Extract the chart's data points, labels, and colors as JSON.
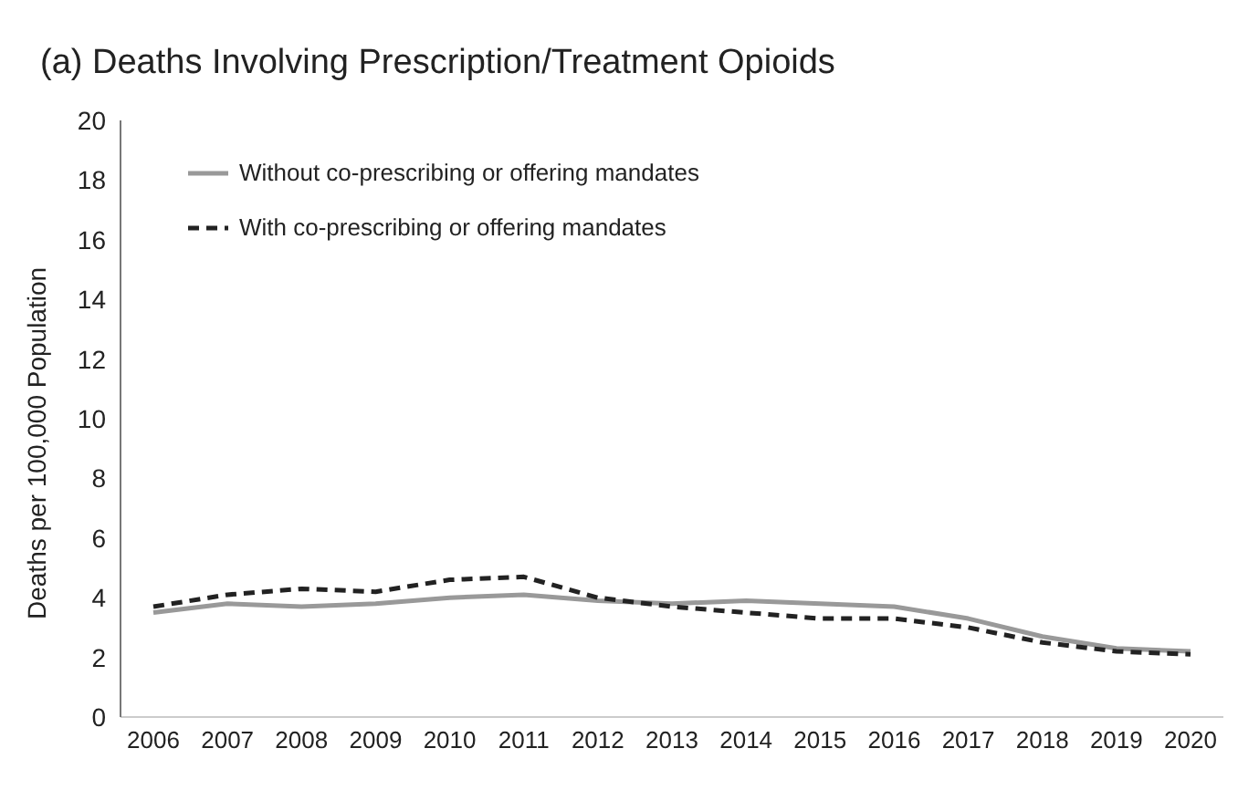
{
  "chart_data": {
    "type": "line",
    "title": "(a) Deaths Involving Prescription/Treatment Opioids",
    "ylabel": "Deaths per 100,000 Population",
    "categories": [
      "2006",
      "2007",
      "2008",
      "2009",
      "2010",
      "2011",
      "2012",
      "2013",
      "2014",
      "2015",
      "2016",
      "2017",
      "2018",
      "2019",
      "2020"
    ],
    "series": [
      {
        "name": "Without co-prescribing or offering mandates",
        "color": "#999999",
        "line_style": "solid",
        "values": [
          3.5,
          3.8,
          3.7,
          3.8,
          4.0,
          4.1,
          3.9,
          3.8,
          3.9,
          3.8,
          3.7,
          3.3,
          2.7,
          2.3,
          2.2
        ]
      },
      {
        "name": "With co-prescribing or offering mandates",
        "color": "#222222",
        "line_style": "dashed",
        "values": [
          3.7,
          4.1,
          4.3,
          4.2,
          4.6,
          4.7,
          4.0,
          3.7,
          3.5,
          3.3,
          3.3,
          3.0,
          2.5,
          2.2,
          2.1
        ]
      }
    ],
    "ylim": [
      0,
      20
    ],
    "yticks": [
      0,
      2,
      4,
      6,
      8,
      10,
      12,
      14,
      16,
      18,
      20
    ],
    "grid": false,
    "legend": "top left",
    "marker": "none"
  }
}
